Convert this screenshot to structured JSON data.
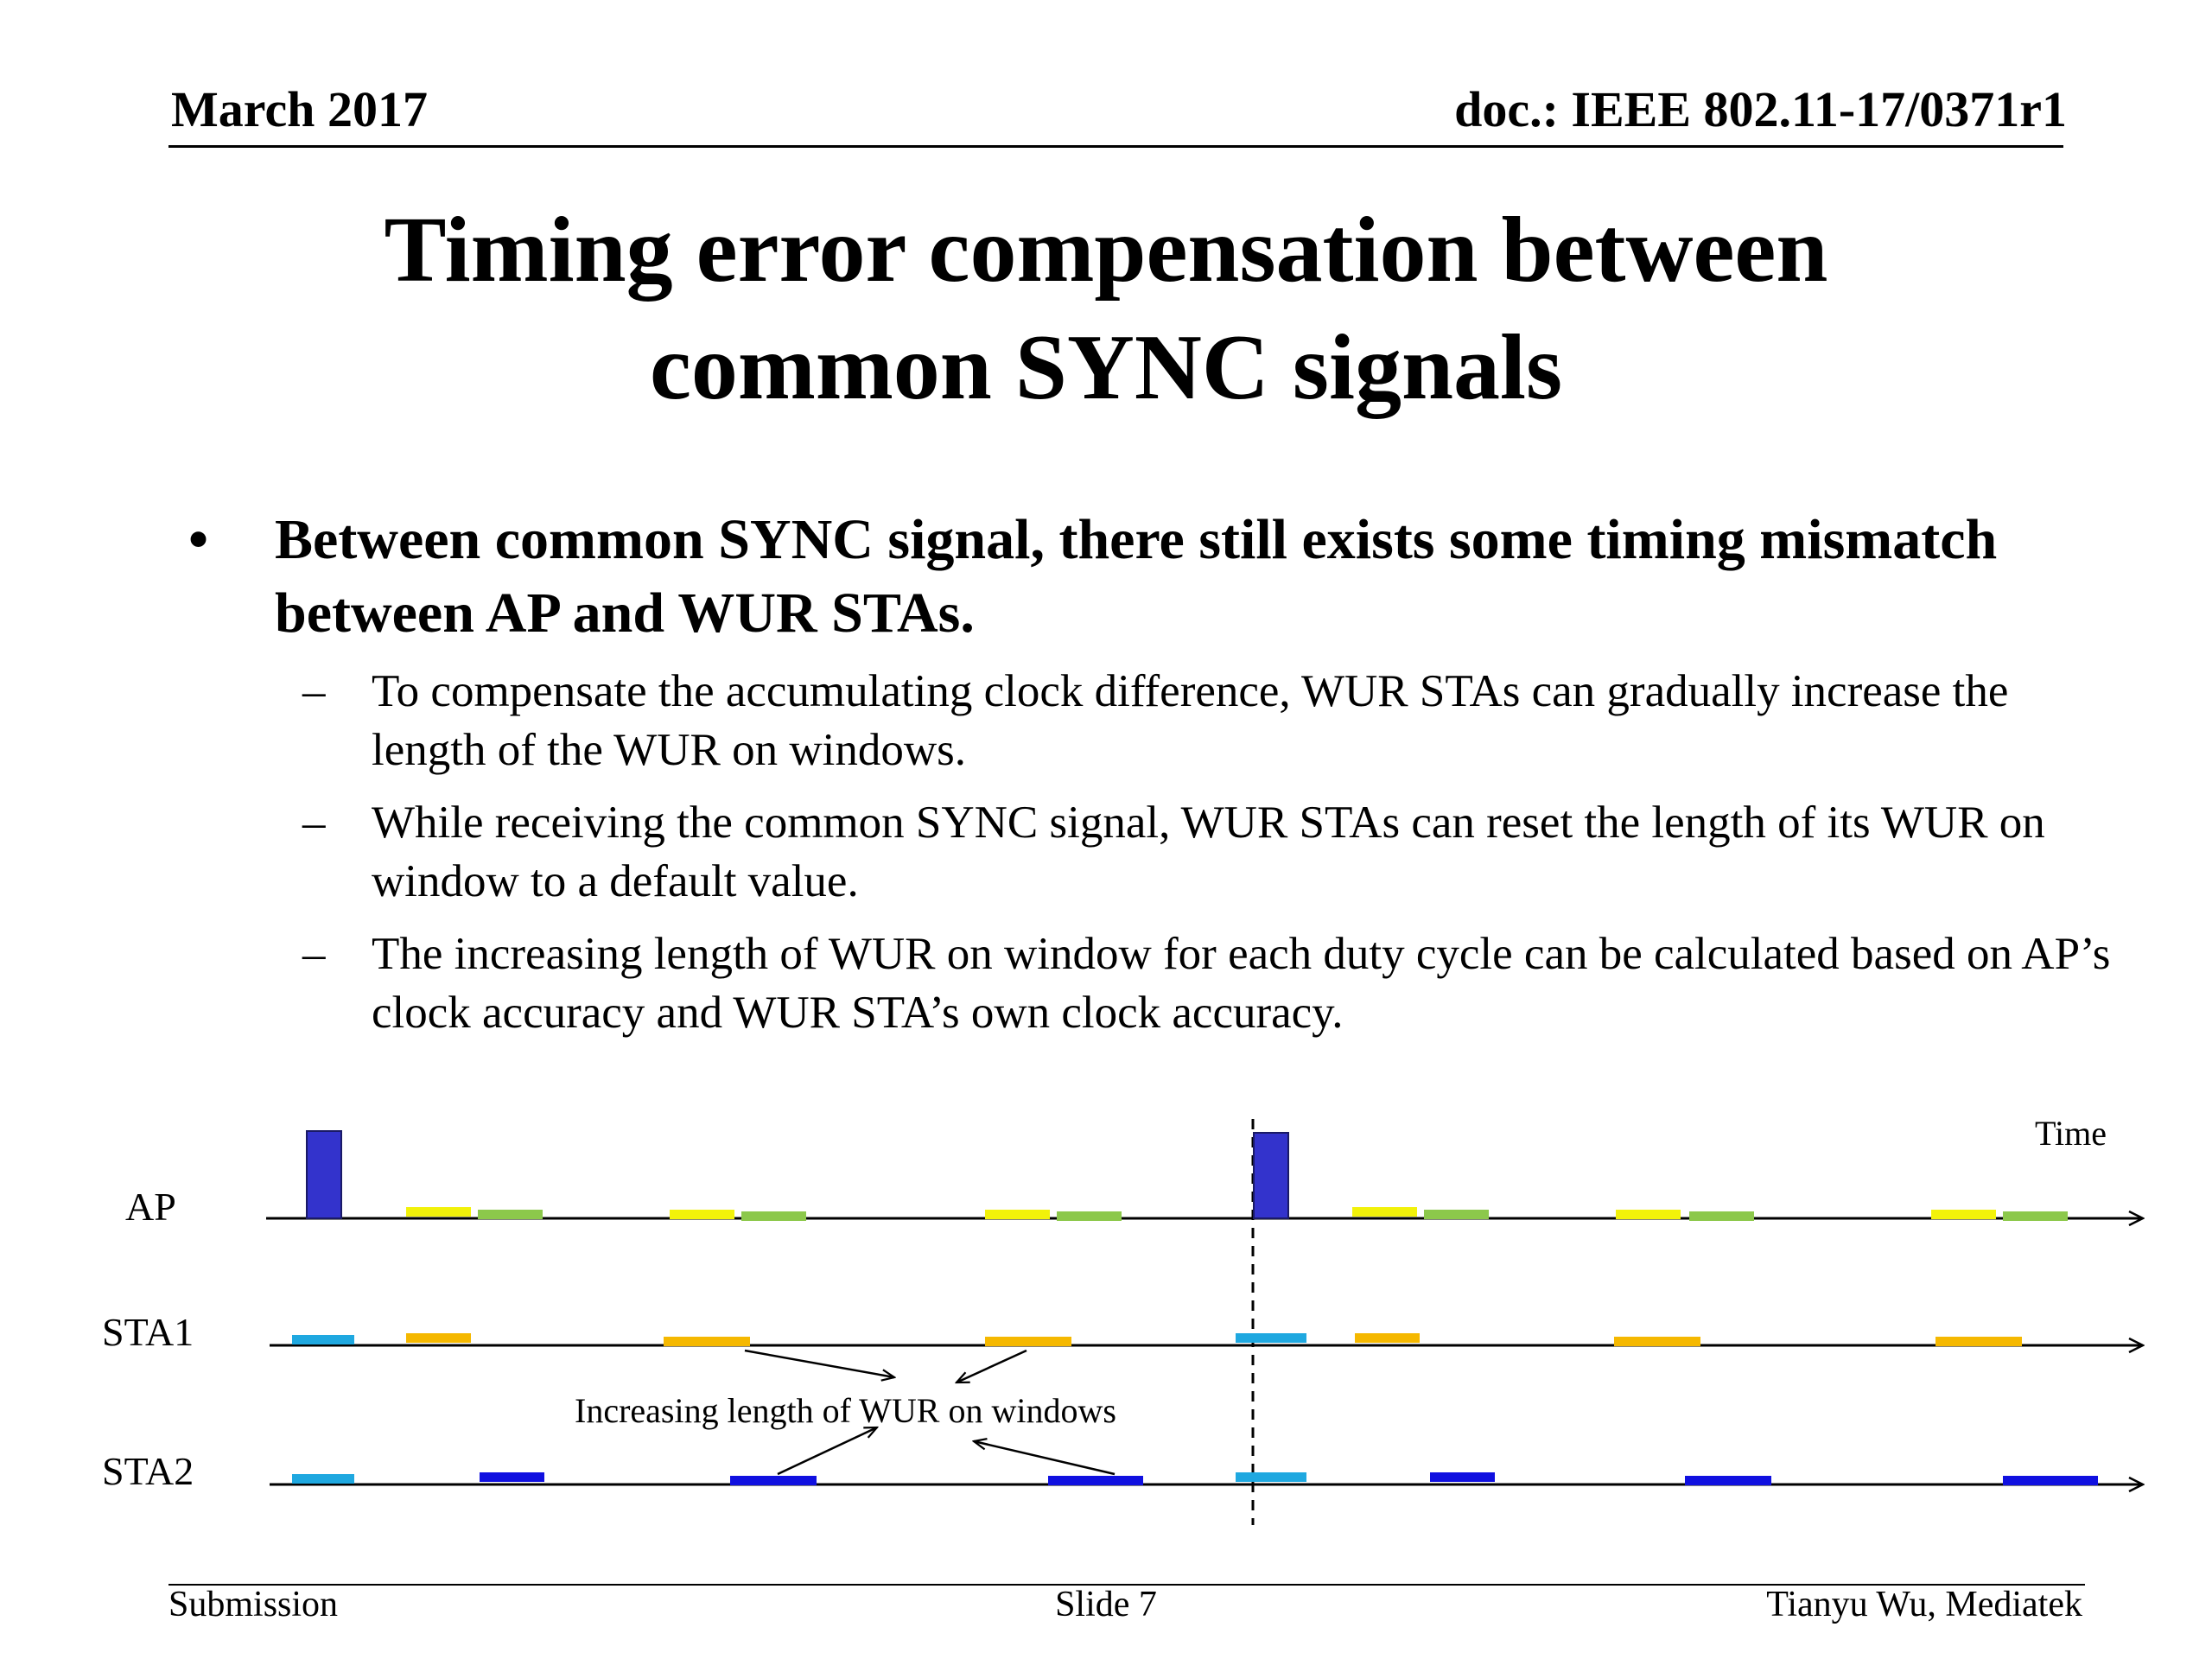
{
  "header": {
    "date": "March 2017",
    "doc_id": "doc.: IEEE 802.11-17/0371r1"
  },
  "title": {
    "line1": "Timing error compensation between",
    "line2": "common SYNC signals"
  },
  "bullet": {
    "marker": "•",
    "text": "Between common SYNC signal, there still exists some timing mismatch between AP and WUR STAs."
  },
  "subbullets": [
    {
      "marker": "–",
      "text": "To compensate the accumulating clock difference, WUR STAs can gradually increase the length of the WUR on windows."
    },
    {
      "marker": "–",
      "text": "While receiving the common SYNC signal, WUR STAs can reset the length of its WUR on window to a default value."
    },
    {
      "marker": "–",
      "text": "The increasing length of WUR on window for each duty cycle can be calculated based on AP’s clock accuracy and WUR STA’s own clock accuracy."
    }
  ],
  "diagram": {
    "time_label": "Time",
    "rows": [
      "AP",
      "STA1",
      "STA2"
    ],
    "annotation": "Increasing length of WUR on windows",
    "colors": {
      "sync_block": "#3333cc",
      "ap_yellow": "#f2f20a",
      "ap_green": "#8cc84b",
      "sta_cyan": "#1fa8e0",
      "sta1_orange": "#f5b800",
      "sta2_blue": "#1010e0"
    }
  },
  "footer": {
    "left": "Submission",
    "center": "Slide 7",
    "right": "Tianyu Wu, Mediatek"
  }
}
